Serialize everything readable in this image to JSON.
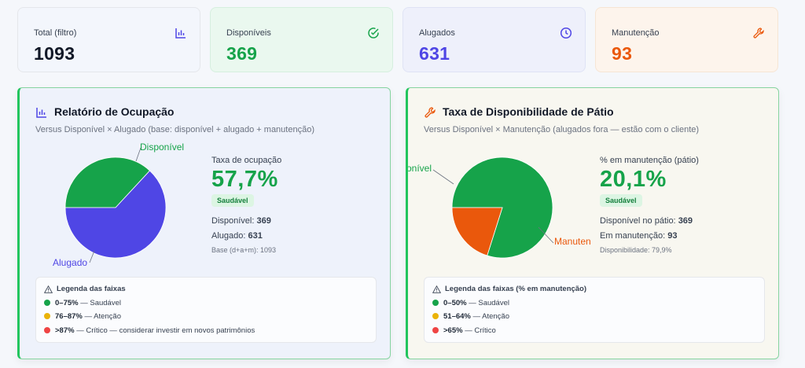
{
  "stats": [
    {
      "label": "Total (filtro)",
      "value": "1093",
      "icon": "chart-icon"
    },
    {
      "label": "Disponíveis",
      "value": "369",
      "icon": "check-circle-icon"
    },
    {
      "label": "Alugados",
      "value": "631",
      "icon": "clock-icon"
    },
    {
      "label": "Manutenção",
      "value": "93",
      "icon": "wrench-icon"
    }
  ],
  "colors": {
    "green": "#16a34a",
    "indigo": "#4f46e5",
    "orange": "#ea580c",
    "yellow": "#eab308",
    "red": "#ef4444"
  },
  "occupancy": {
    "title": "Relatório de Ocupação",
    "subtitle": "Versus Disponível × Alugado (base: disponível + alugado + manutenção)",
    "metric_label": "Taxa de ocupação",
    "metric_value": "57,7%",
    "badge": "Saudável",
    "line1_label": "Disponível:",
    "line1_value": "369",
    "line2_label": "Alugado:",
    "line2_value": "631",
    "note": "Base (d+a+m): 1093",
    "pie_labels": {
      "a": "Disponível",
      "b": "Alugado"
    },
    "legend": {
      "title": "Legenda das faixas",
      "rows": [
        {
          "range": "0–75%",
          "text": "— Saudável"
        },
        {
          "range": "76–87%",
          "text": "— Atenção"
        },
        {
          "range": ">87%",
          "text": "— Crítico — considerar investir em novos patrimônios"
        }
      ]
    }
  },
  "availability": {
    "title": "Taxa de Disponibilidade de Pátio",
    "subtitle": "Versus Disponível × Manutenção (alugados fora — estão com o cliente)",
    "metric_label": "% em manutenção (pátio)",
    "metric_value": "20,1%",
    "badge": "Saudável",
    "line1_label": "Disponível no pátio:",
    "line1_value": "369",
    "line2_label": "Em manutenção:",
    "line2_value": "93",
    "note": "Disponibilidade: 79,9%",
    "pie_labels": {
      "a": "ponível",
      "b": "Manuten"
    },
    "legend": {
      "title": "Legenda das faixas (% em manutenção)",
      "rows": [
        {
          "range": "0–50%",
          "text": "— Saudável"
        },
        {
          "range": "51–64%",
          "text": "— Atenção"
        },
        {
          "range": ">65%",
          "text": "— Crítico"
        }
      ]
    }
  },
  "chart_data": [
    {
      "type": "pie",
      "categories": [
        "Disponível",
        "Alugado"
      ],
      "values": [
        369,
        631
      ]
    },
    {
      "type": "pie",
      "categories": [
        "Disponível",
        "Manutenção"
      ],
      "values": [
        369,
        93
      ]
    }
  ]
}
